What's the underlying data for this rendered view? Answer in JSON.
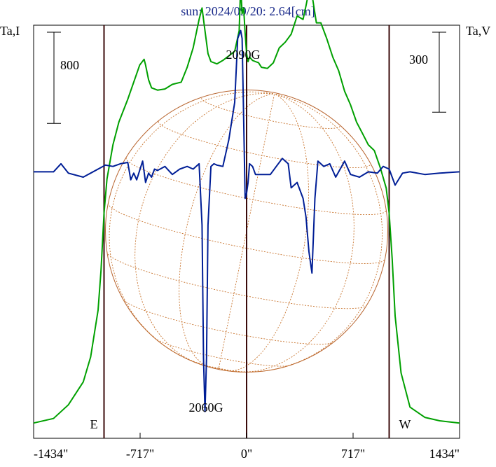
{
  "chart_data": {
    "type": "line",
    "title": "sun: 2024/09/20: 2.64[cm]",
    "ylabel_left": "Ta,I",
    "ylabel_right": "Ta,V",
    "xlim": [
      -1434,
      1434
    ],
    "ylim_I": [
      0,
      3500
    ],
    "ylim_V": [
      -1000,
      550
    ],
    "x_ticks": [
      -1434,
      -717,
      0,
      717,
      1434
    ],
    "x_tick_labels": [
      "-1434\"",
      "-717\"",
      "0\"",
      "717\"",
      "1434\""
    ],
    "scale_bar_I": {
      "label": "800",
      "value": 800
    },
    "scale_bar_V": {
      "label": "300",
      "value": 300
    },
    "limb_labels": {
      "east": "E",
      "west": "W",
      "east_x": -960,
      "west_x": 960
    },
    "annotations": [
      {
        "text": "2090G",
        "x": -20,
        "series": "I"
      },
      {
        "text": "2060G",
        "x": -280,
        "series": "V"
      }
    ],
    "grid": false,
    "series": [
      {
        "name": "I",
        "color": "#00a000",
        "x": [
          -1434,
          -1300,
          -1200,
          -1100,
          -1050,
          -1000,
          -980,
          -960,
          -940,
          -900,
          -860,
          -800,
          -760,
          -720,
          -690,
          -680,
          -660,
          -640,
          -600,
          -550,
          -500,
          -440,
          -400,
          -360,
          -320,
          -300,
          -280,
          -260,
          -240,
          -200,
          -160,
          -120,
          -80,
          -50,
          -40,
          -30,
          -20,
          -10,
          0,
          10,
          20,
          40,
          60,
          80,
          100,
          140,
          180,
          220,
          260,
          300,
          340,
          380,
          400,
          420,
          440,
          470,
          500,
          540,
          580,
          620,
          660,
          700,
          740,
          780,
          820,
          860,
          900,
          940,
          960,
          980,
          1000,
          1040,
          1100,
          1200,
          1300,
          1434
        ],
        "y": [
          60,
          100,
          220,
          420,
          640,
          1050,
          1400,
          1900,
          2200,
          2500,
          2700,
          2900,
          3050,
          3200,
          3250,
          3200,
          3070,
          3000,
          2980,
          2990,
          3030,
          3050,
          3180,
          3350,
          3600,
          3700,
          3500,
          3300,
          3230,
          3210,
          3240,
          3280,
          3320,
          3500,
          3900,
          3650,
          3700,
          3480,
          3300,
          3230,
          3270,
          3240,
          3230,
          3220,
          3180,
          3170,
          3220,
          3350,
          3400,
          3470,
          3630,
          3600,
          3720,
          3850,
          3820,
          3570,
          3570,
          3430,
          3270,
          3150,
          2970,
          2850,
          2700,
          2600,
          2500,
          2450,
          2300,
          2120,
          1900,
          1500,
          1000,
          500,
          200,
          110,
          80,
          60
        ]
      },
      {
        "name": "V",
        "color": "#001e96",
        "x": [
          -1434,
          -1300,
          -1250,
          -1200,
          -1100,
          -1000,
          -950,
          -900,
          -850,
          -800,
          -780,
          -760,
          -740,
          -700,
          -680,
          -660,
          -640,
          -620,
          -600,
          -550,
          -500,
          -450,
          -400,
          -360,
          -320,
          -300,
          -290,
          -280,
          -270,
          -260,
          -240,
          -220,
          -200,
          -160,
          -120,
          -80,
          -60,
          -40,
          -30,
          -20,
          -10,
          0,
          10,
          20,
          40,
          60,
          80,
          120,
          160,
          200,
          240,
          280,
          300,
          340,
          380,
          400,
          420,
          440,
          460,
          480,
          520,
          560,
          600,
          660,
          700,
          760,
          820,
          880,
          920,
          960,
          1000,
          1050,
          1100,
          1200,
          1300,
          1434
        ],
        "y": [
          0,
          0,
          30,
          -5,
          -20,
          10,
          25,
          20,
          30,
          35,
          -30,
          -5,
          -30,
          40,
          -40,
          -5,
          -20,
          10,
          5,
          20,
          -10,
          10,
          20,
          10,
          30,
          -200,
          -700,
          -900,
          -700,
          -200,
          20,
          30,
          25,
          20,
          120,
          260,
          500,
          530,
          500,
          200,
          -100,
          -80,
          -40,
          30,
          20,
          -10,
          -10,
          -10,
          -10,
          20,
          50,
          30,
          -60,
          -40,
          -100,
          -170,
          -300,
          -380,
          -100,
          40,
          20,
          30,
          -20,
          40,
          -10,
          -20,
          0,
          -5,
          20,
          10,
          -50,
          -5,
          0,
          -10,
          -5,
          0
        ]
      }
    ]
  }
}
